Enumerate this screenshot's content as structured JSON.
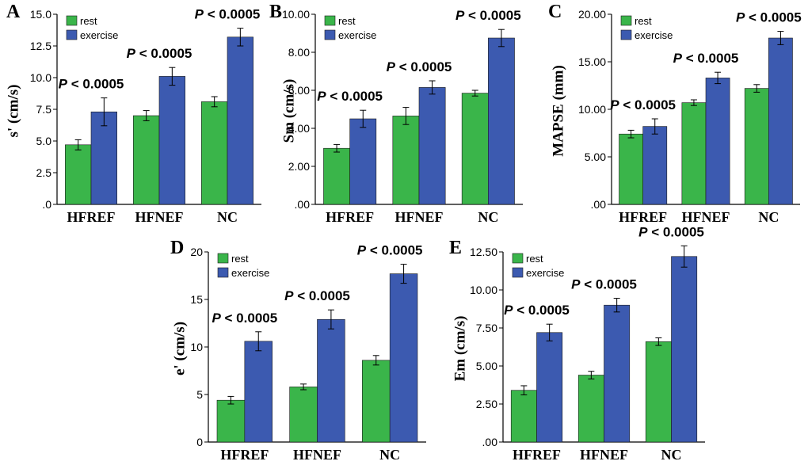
{
  "colors": {
    "rest": "#3ab54a",
    "exercise": "#3c5ab0",
    "axis": "#000000"
  },
  "legend": {
    "rest": "rest",
    "exercise": "exercise"
  },
  "chart_data": [
    {
      "panel": "A",
      "type": "bar",
      "ylabel": "s' (cm/s)",
      "categories": [
        "HFREF",
        "HFNEF",
        "NC"
      ],
      "ylim": [
        0,
        15
      ],
      "yticks": [
        ".0",
        "2.5",
        "5.0",
        "7.5",
        "10.0",
        "12.5",
        "15.0"
      ],
      "yticks_values": [
        0,
        2.5,
        5,
        7.5,
        10,
        12.5,
        15
      ],
      "series": [
        {
          "name": "rest",
          "values": [
            4.7,
            7.0,
            8.1
          ],
          "err": [
            0.4,
            0.4,
            0.4
          ]
        },
        {
          "name": "exercise",
          "values": [
            7.3,
            10.1,
            13.2
          ],
          "err": [
            1.1,
            0.7,
            0.7
          ]
        }
      ],
      "annotations": [
        "P < 0.0005",
        "P < 0.0005",
        "P < 0.0005"
      ],
      "legend_position": "top-left"
    },
    {
      "panel": "B",
      "type": "bar",
      "ylabel": "Sm (cm/s)",
      "categories": [
        "HFREF",
        "HFNEF",
        "NC"
      ],
      "ylim": [
        0,
        10
      ],
      "yticks": [
        ".00",
        "2.00",
        "4.00",
        "6.00",
        "8.00",
        "10.00"
      ],
      "yticks_values": [
        0,
        2,
        4,
        6,
        8,
        10
      ],
      "series": [
        {
          "name": "rest",
          "values": [
            2.95,
            4.65,
            5.85
          ],
          "err": [
            0.2,
            0.45,
            0.15
          ]
        },
        {
          "name": "exercise",
          "values": [
            4.5,
            6.15,
            8.75
          ],
          "err": [
            0.45,
            0.35,
            0.45
          ]
        }
      ],
      "annotations": [
        "P < 0.0005",
        "P < 0.0005",
        "P < 0.0005"
      ],
      "legend_position": "top-left"
    },
    {
      "panel": "C",
      "type": "bar",
      "ylabel": "MAPSE (mm)",
      "categories": [
        "HFREF",
        "HFNEF",
        "NC"
      ],
      "ylim": [
        0,
        20
      ],
      "yticks": [
        ".00",
        "5.00",
        "10.00",
        "15.00",
        "20.00"
      ],
      "yticks_values": [
        0,
        5,
        10,
        15,
        20
      ],
      "series": [
        {
          "name": "rest",
          "values": [
            7.4,
            10.7,
            12.2
          ],
          "err": [
            0.4,
            0.3,
            0.4
          ]
        },
        {
          "name": "exercise",
          "values": [
            8.2,
            13.3,
            17.5
          ],
          "err": [
            0.8,
            0.6,
            0.7
          ]
        }
      ],
      "annotations": [
        "P < 0.0005",
        "P < 0.0005",
        "P < 0.0005"
      ],
      "legend_position": "top-left"
    },
    {
      "panel": "D",
      "type": "bar",
      "ylabel": "e' (cm/s)",
      "categories": [
        "HFREF",
        "HFNEF",
        "NC"
      ],
      "ylim": [
        0,
        20
      ],
      "yticks": [
        "0",
        "5",
        "10",
        "15",
        "20"
      ],
      "yticks_values": [
        0,
        5,
        10,
        15,
        20
      ],
      "series": [
        {
          "name": "rest",
          "values": [
            4.4,
            5.8,
            8.6
          ],
          "err": [
            0.4,
            0.3,
            0.5
          ]
        },
        {
          "name": "exercise",
          "values": [
            10.6,
            12.9,
            17.7
          ],
          "err": [
            1.0,
            1.0,
            1.0
          ]
        }
      ],
      "annotations": [
        "P < 0.0005",
        "P < 0.0005",
        "P < 0.0005"
      ],
      "legend_position": "top-left"
    },
    {
      "panel": "E",
      "type": "bar",
      "ylabel": "Em (cm/s)",
      "categories": [
        "HFREF",
        "HFNEF",
        "NC"
      ],
      "ylim": [
        0,
        12.5
      ],
      "yticks": [
        ".00",
        "2.50",
        "5.00",
        "7.50",
        "10.00",
        "12.50"
      ],
      "yticks_values": [
        0,
        2.5,
        5,
        7.5,
        10,
        12.5
      ],
      "series": [
        {
          "name": "rest",
          "values": [
            3.4,
            4.4,
            6.6
          ],
          "err": [
            0.3,
            0.25,
            0.25
          ]
        },
        {
          "name": "exercise",
          "values": [
            7.2,
            9.0,
            12.2
          ],
          "err": [
            0.55,
            0.45,
            0.7
          ]
        }
      ],
      "annotations": [
        "P < 0.0005",
        "P < 0.0005",
        "P < 0.0005"
      ],
      "legend_position": "top-left"
    }
  ]
}
